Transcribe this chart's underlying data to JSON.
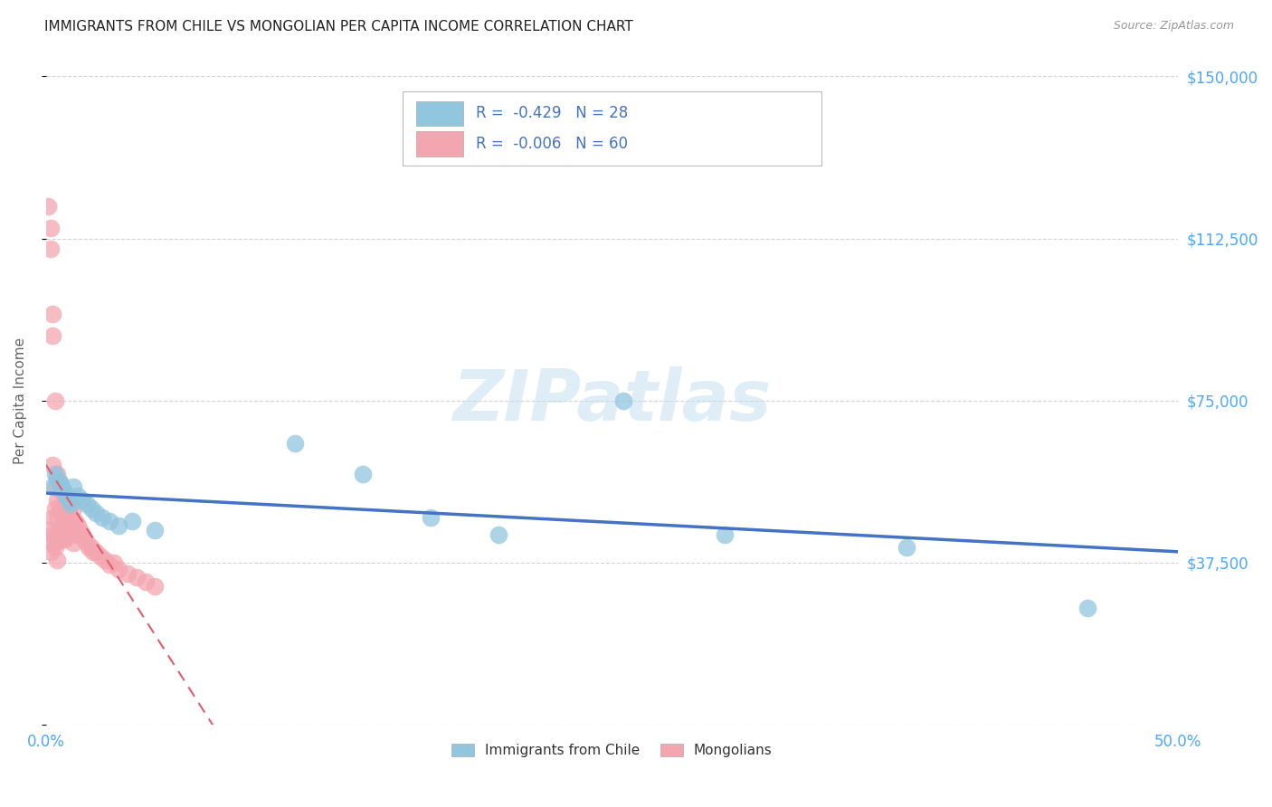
{
  "title": "IMMIGRANTS FROM CHILE VS MONGOLIAN PER CAPITA INCOME CORRELATION CHART",
  "source": "Source: ZipAtlas.com",
  "ylabel": "Per Capita Income",
  "x_min": 0.0,
  "x_max": 0.5,
  "y_min": 0,
  "y_max": 150000,
  "yticks": [
    0,
    37500,
    75000,
    112500,
    150000
  ],
  "ytick_labels": [
    "",
    "$37,500",
    "$75,000",
    "$112,500",
    "$150,000"
  ],
  "watermark": "ZIPatlas",
  "blue_scatter_x": [
    0.003,
    0.004,
    0.005,
    0.006,
    0.007,
    0.008,
    0.009,
    0.01,
    0.011,
    0.012,
    0.014,
    0.016,
    0.018,
    0.02,
    0.022,
    0.025,
    0.028,
    0.032,
    0.038,
    0.11,
    0.14,
    0.17,
    0.2,
    0.255,
    0.3,
    0.38,
    0.46,
    0.048
  ],
  "blue_scatter_y": [
    55000,
    58000,
    57000,
    56000,
    55000,
    54000,
    53000,
    52000,
    51000,
    55000,
    53000,
    52000,
    51000,
    50000,
    49000,
    48000,
    47000,
    46000,
    47000,
    65000,
    58000,
    48000,
    44000,
    75000,
    44000,
    41000,
    27000,
    45000
  ],
  "pink_scatter_x": [
    0.001,
    0.002,
    0.002,
    0.003,
    0.003,
    0.003,
    0.004,
    0.004,
    0.004,
    0.005,
    0.005,
    0.005,
    0.005,
    0.006,
    0.006,
    0.006,
    0.007,
    0.007,
    0.007,
    0.008,
    0.008,
    0.008,
    0.009,
    0.009,
    0.01,
    0.01,
    0.011,
    0.012,
    0.012,
    0.013,
    0.014,
    0.015,
    0.016,
    0.017,
    0.018,
    0.019,
    0.02,
    0.021,
    0.022,
    0.024,
    0.026,
    0.028,
    0.03,
    0.032,
    0.036,
    0.04,
    0.044,
    0.048,
    0.003,
    0.004,
    0.006,
    0.008,
    0.01,
    0.012,
    0.001,
    0.002,
    0.003,
    0.003,
    0.004,
    0.005
  ],
  "pink_scatter_y": [
    120000,
    115000,
    110000,
    95000,
    90000,
    60000,
    75000,
    55000,
    50000,
    58000,
    52000,
    48000,
    44000,
    56000,
    50000,
    45000,
    54000,
    49000,
    44000,
    53000,
    47000,
    43000,
    52000,
    46000,
    50000,
    45000,
    48000,
    50000,
    44000,
    47000,
    46000,
    45000,
    44000,
    43000,
    42000,
    41000,
    41000,
    40000,
    40000,
    39000,
    38000,
    37000,
    37500,
    36000,
    35000,
    34000,
    33000,
    32000,
    42000,
    41000,
    45000,
    43000,
    44000,
    42000,
    45000,
    40000,
    48000,
    44000,
    42000,
    38000
  ],
  "blue_color": "#92C5DE",
  "pink_color": "#F4A6B0",
  "blue_line_color": "#4472c4",
  "pink_line_color": "#e05c6e",
  "blue_r": "-0.429",
  "blue_n": "28",
  "pink_r": "-0.006",
  "pink_n": "60",
  "bottom_legend_blue": "Immigrants from Chile",
  "bottom_legend_pink": "Mongolians",
  "grid_color": "#c8c8c8",
  "title_fontsize": 11,
  "axis_label_color": "#4da6ff",
  "ylabel_color": "#666666",
  "legend_text_color": "#4472c4",
  "legend_label_color": "#333333"
}
